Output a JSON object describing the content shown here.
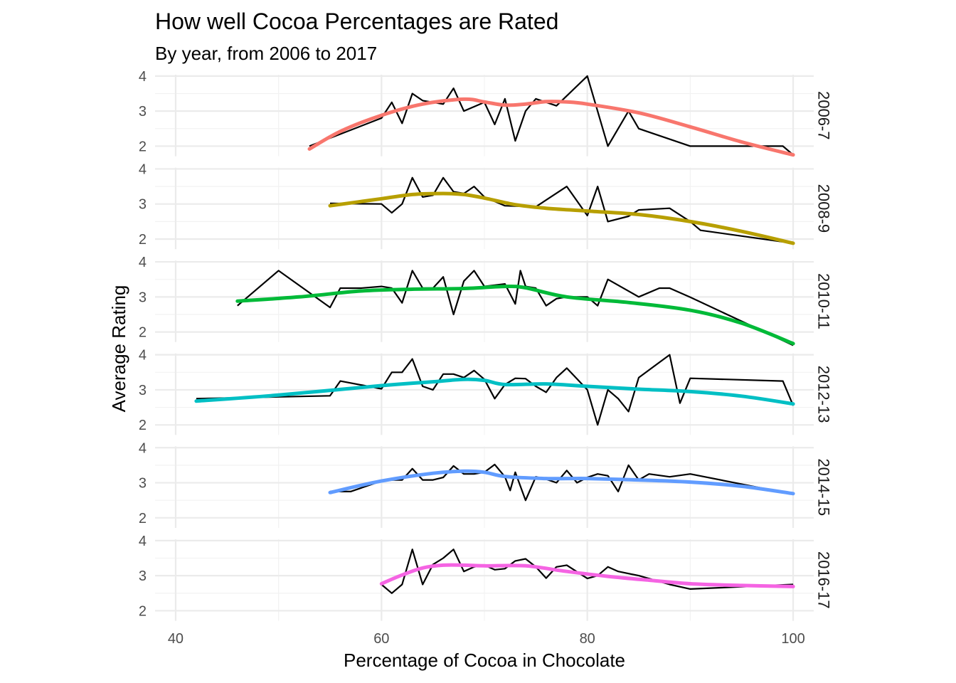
{
  "chart_data": {
    "type": "line",
    "title": "How well Cocoa Percentages are Rated",
    "subtitle": "By year, from 2006 to 2017",
    "xlabel": "Percentage of Cocoa in Chocolate",
    "ylabel": "Average Rating",
    "xlim": [
      38,
      102
    ],
    "ylim": [
      1.55,
      4.2
    ],
    "x_ticks": [
      40,
      60,
      80,
      100
    ],
    "y_ticks": [
      2,
      3,
      4
    ],
    "grid": true,
    "facet_strip_position": "right",
    "panels": [
      {
        "label": "2006-7",
        "color": "#F8766D",
        "series": [
          {
            "x": [
              53,
              60,
              61,
              62,
              63,
              64,
              65,
              66,
              67,
              68,
              70,
              71,
              72,
              73,
              74,
              75,
              77,
              80,
              82,
              84,
              85,
              90,
              99,
              100
            ],
            "y": [
              2.0,
              2.8,
              3.25,
              2.65,
              3.5,
              3.3,
              3.25,
              3.2,
              3.65,
              3.0,
              3.25,
              2.62,
              3.35,
              2.15,
              3.0,
              3.35,
              3.15,
              4.0,
              2.0,
              3.0,
              2.5,
              2.0,
              2.0,
              1.75
            ]
          },
          {
            "x": [
              53,
              56,
              60,
              64,
              68,
              70,
              72,
              74,
              76,
              78,
              80,
              85,
              90,
              95,
              100
            ],
            "y": [
              1.92,
              2.42,
              2.88,
              3.2,
              3.34,
              3.26,
              3.17,
              3.2,
              3.27,
              3.26,
              3.2,
              2.95,
              2.55,
              2.12,
              1.75
            ]
          }
        ]
      },
      {
        "label": "2008-9",
        "color": "#B79F00",
        "series": [
          {
            "x": [
              55,
              60,
              61,
              62,
              63,
              64,
              65,
              66,
              67,
              68,
              69,
              70,
              72,
              75,
              78,
              80,
              81,
              82,
              84,
              85,
              88,
              90,
              91,
              100
            ],
            "y": [
              3.02,
              3.0,
              2.75,
              3.0,
              3.75,
              3.2,
              3.25,
              3.75,
              3.35,
              3.3,
              3.5,
              3.2,
              2.95,
              2.92,
              3.5,
              2.67,
              3.5,
              2.5,
              2.65,
              2.83,
              2.88,
              2.5,
              2.25,
              1.88
            ]
          },
          {
            "x": [
              55,
              60,
              63,
              66,
              68,
              70,
              73,
              76,
              80,
              85,
              90,
              95,
              100
            ],
            "y": [
              2.95,
              3.15,
              3.27,
              3.3,
              3.27,
              3.17,
              2.98,
              2.88,
              2.8,
              2.7,
              2.5,
              2.22,
              1.88
            ]
          }
        ]
      },
      {
        "label": "2010-11",
        "color": "#00BA38",
        "series": [
          {
            "x": [
              46,
              50,
              55,
              56,
              58,
              60,
              61,
              62,
              63,
              64,
              65,
              66,
              67,
              68,
              69,
              70,
              72,
              73,
              73.5,
              74,
              75,
              76,
              77,
              78,
              80,
              81,
              82,
              85,
              87,
              88,
              90,
              100
            ],
            "y": [
              2.75,
              3.75,
              2.7,
              3.25,
              3.25,
              3.3,
              3.25,
              2.83,
              3.75,
              3.25,
              3.25,
              3.57,
              2.5,
              3.45,
              3.75,
              3.3,
              3.37,
              2.8,
              3.75,
              3.3,
              3.25,
              2.75,
              2.95,
              3.0,
              3.0,
              2.75,
              3.5,
              3.0,
              3.25,
              3.25,
              2.99,
              1.62
            ]
          },
          {
            "x": [
              46,
              52,
              58,
              63,
              68,
              72,
              74,
              78,
              84,
              90,
              95,
              100
            ],
            "y": [
              2.88,
              3.0,
              3.17,
              3.22,
              3.24,
              3.3,
              3.26,
              3.0,
              2.84,
              2.62,
              2.25,
              1.67
            ]
          }
        ]
      },
      {
        "label": "2012-13",
        "color": "#00BFC4",
        "series": [
          {
            "x": [
              42,
              55,
              56,
              60,
              61,
              62,
              63,
              64,
              65,
              66,
              67,
              68,
              69,
              70,
              71,
              72,
              73,
              74,
              75,
              76,
              77,
              78,
              80,
              81,
              82,
              83,
              84,
              85,
              88,
              89,
              90,
              99,
              100
            ],
            "y": [
              2.75,
              2.83,
              3.25,
              3.03,
              3.5,
              3.5,
              3.88,
              3.1,
              3.0,
              3.45,
              3.45,
              3.35,
              3.55,
              3.3,
              2.75,
              3.15,
              3.33,
              3.32,
              3.1,
              2.93,
              3.35,
              3.62,
              3.0,
              2.0,
              3.0,
              2.75,
              2.38,
              3.35,
              4.0,
              2.62,
              3.33,
              3.25,
              2.55
            ]
          },
          {
            "x": [
              42,
              50,
              60,
              65,
              68,
              70,
              72,
              76,
              80,
              85,
              90,
              95,
              100
            ],
            "y": [
              2.68,
              2.85,
              3.12,
              3.23,
              3.3,
              3.27,
              3.15,
              3.17,
              3.1,
              3.02,
              2.95,
              2.82,
              2.6
            ]
          }
        ]
      },
      {
        "label": "2014-15",
        "color": "#619CFF",
        "series": [
          {
            "x": [
              55,
              57,
              60,
              61,
              62,
              63,
              64,
              65,
              66,
              67,
              68,
              69,
              70,
              71,
              72,
              72.5,
              73,
              74,
              75,
              76,
              77,
              78,
              79,
              80,
              81,
              82,
              83,
              84,
              85,
              86,
              88,
              90,
              100
            ],
            "y": [
              2.75,
              2.75,
              3.05,
              3.08,
              3.08,
              3.4,
              3.08,
              3.08,
              3.15,
              3.48,
              3.25,
              3.25,
              3.3,
              3.52,
              3.17,
              2.78,
              3.3,
              2.5,
              3.17,
              3.1,
              3.0,
              3.35,
              3.0,
              3.15,
              3.25,
              3.2,
              2.75,
              3.5,
              3.08,
              3.25,
              3.17,
              3.25,
              2.67
            ]
          },
          {
            "x": [
              55,
              60,
              65,
              68,
              70,
              72,
              76,
              80,
              85,
              90,
              95,
              100
            ],
            "y": [
              2.72,
              3.05,
              3.27,
              3.33,
              3.3,
              3.18,
              3.12,
              3.12,
              3.08,
              3.02,
              2.9,
              2.69
            ]
          }
        ]
      },
      {
        "label": "2016-17",
        "color": "#F564E3",
        "series": [
          {
            "x": [
              60,
              61,
              62,
              63,
              64,
              65,
              66,
              67,
              68,
              69,
              70,
              71,
              72,
              73,
              74,
              75,
              76,
              77,
              78,
              80,
              81,
              82,
              83,
              85,
              88,
              90,
              100
            ],
            "y": [
              2.75,
              2.5,
              2.75,
              3.75,
              2.75,
              3.32,
              3.5,
              3.75,
              3.12,
              3.25,
              3.3,
              3.17,
              3.2,
              3.42,
              3.48,
              3.25,
              2.93,
              3.25,
              3.3,
              2.92,
              3.0,
              3.25,
              3.12,
              3.0,
              2.75,
              2.62,
              2.75
            ]
          },
          {
            "x": [
              60,
              62,
              64,
              66,
              68,
              70,
              74,
              78,
              82,
              86,
              90,
              95,
              100
            ],
            "y": [
              2.77,
              3.02,
              3.22,
              3.3,
              3.3,
              3.28,
              3.28,
              3.12,
              2.98,
              2.87,
              2.77,
              2.72,
              2.69
            ]
          }
        ]
      }
    ]
  }
}
